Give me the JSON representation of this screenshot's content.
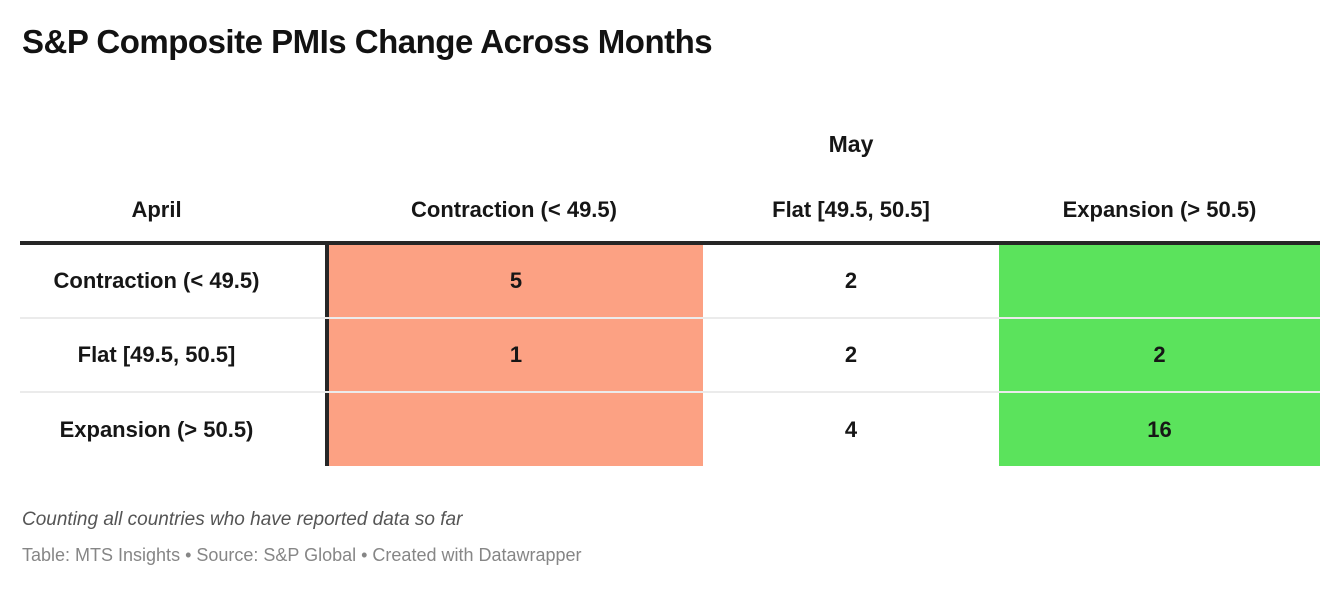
{
  "header": {
    "title": "S&P Composite PMIs Change Across Months"
  },
  "table": {
    "column_group_header": "May",
    "row_group_header": "April",
    "columns": [
      "Contraction (< 49.5)",
      "Flat [49.5, 50.5]",
      "Expansion (> 50.5)"
    ],
    "rows": [
      {
        "label": "Contraction (< 49.5)",
        "cells": [
          "5",
          "2",
          ""
        ]
      },
      {
        "label": "Flat [49.5, 50.5]",
        "cells": [
          "1",
          "2",
          "2"
        ]
      },
      {
        "label": "Expansion (> 50.5)",
        "cells": [
          "",
          "4",
          "16"
        ]
      }
    ]
  },
  "colors": {
    "contraction_bg": "#FCA183",
    "expansion_bg": "#5BE35C",
    "header_rule": "#262626",
    "row_divider": "#EBEBEB",
    "text": "#161616"
  },
  "footer": {
    "note": "Counting all countries who have reported data so far",
    "byline": "Table: MTS Insights • Source: S&P Global • Created with Datawrapper"
  },
  "chart_data": {
    "type": "table",
    "title": "S&P Composite PMIs Change Across Months",
    "row_axis_label": "April",
    "column_axis_label": "May",
    "columns": [
      "Contraction (< 49.5)",
      "Flat [49.5, 50.5]",
      "Expansion (> 50.5)"
    ],
    "rows": [
      "Contraction (< 49.5)",
      "Flat [49.5, 50.5]",
      "Expansion (> 50.5)"
    ],
    "values": [
      [
        5,
        2,
        null
      ],
      [
        1,
        2,
        2
      ],
      [
        null,
        4,
        16
      ]
    ],
    "column_colors": [
      "#FCA183",
      "#FFFFFF",
      "#5BE35C"
    ],
    "note": "Counting all countries who have reported data so far",
    "table_credit": "MTS Insights",
    "source": "S&P Global",
    "tool": "Datawrapper"
  }
}
